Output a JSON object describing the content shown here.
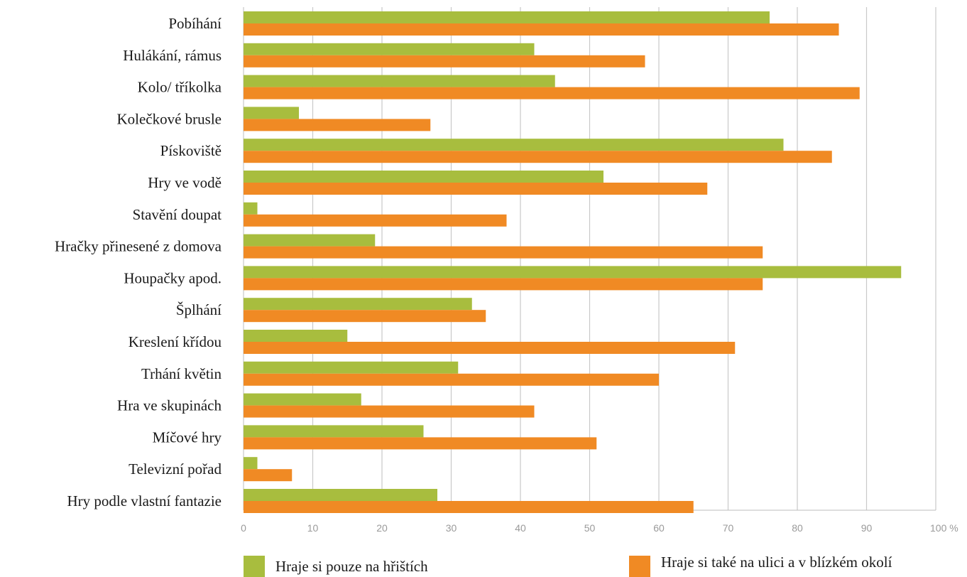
{
  "chart_data": {
    "type": "bar",
    "orientation": "horizontal",
    "categories": [
      "Pobíhání",
      "Hulákání, rámus",
      "Kolo/ tříkolka",
      "Kolečkové brusle",
      "Pískoviště",
      "Hry ve vodě",
      "Stavění doupat",
      "Hračky přinesené z domova",
      "Houpačky apod.",
      "Šplhání",
      "Kreslení křídou",
      "Trhání květin",
      "Hra ve skupinách",
      "Míčové hry",
      "Televizní pořad",
      "Hry podle vlastní fantazie"
    ],
    "series": [
      {
        "name": "Hraje si pouze na hřištích",
        "color": "#a8bd3e",
        "values": [
          76,
          42,
          45,
          8,
          78,
          52,
          2,
          19,
          95,
          33,
          15,
          31,
          17,
          26,
          2,
          28
        ]
      },
      {
        "name": "Hraje si také na ulici a v blízkém okolí",
        "color": "#f08a24",
        "values": [
          86,
          58,
          89,
          27,
          85,
          67,
          38,
          75,
          75,
          35,
          71,
          60,
          42,
          51,
          7,
          65
        ]
      }
    ],
    "xlim": [
      0,
      100
    ],
    "xticks": [
      "0",
      "10",
      "20",
      "30",
      "40",
      "50",
      "60",
      "70",
      "80",
      "90",
      "100 %"
    ],
    "grid": true,
    "legend_position": "bottom"
  }
}
